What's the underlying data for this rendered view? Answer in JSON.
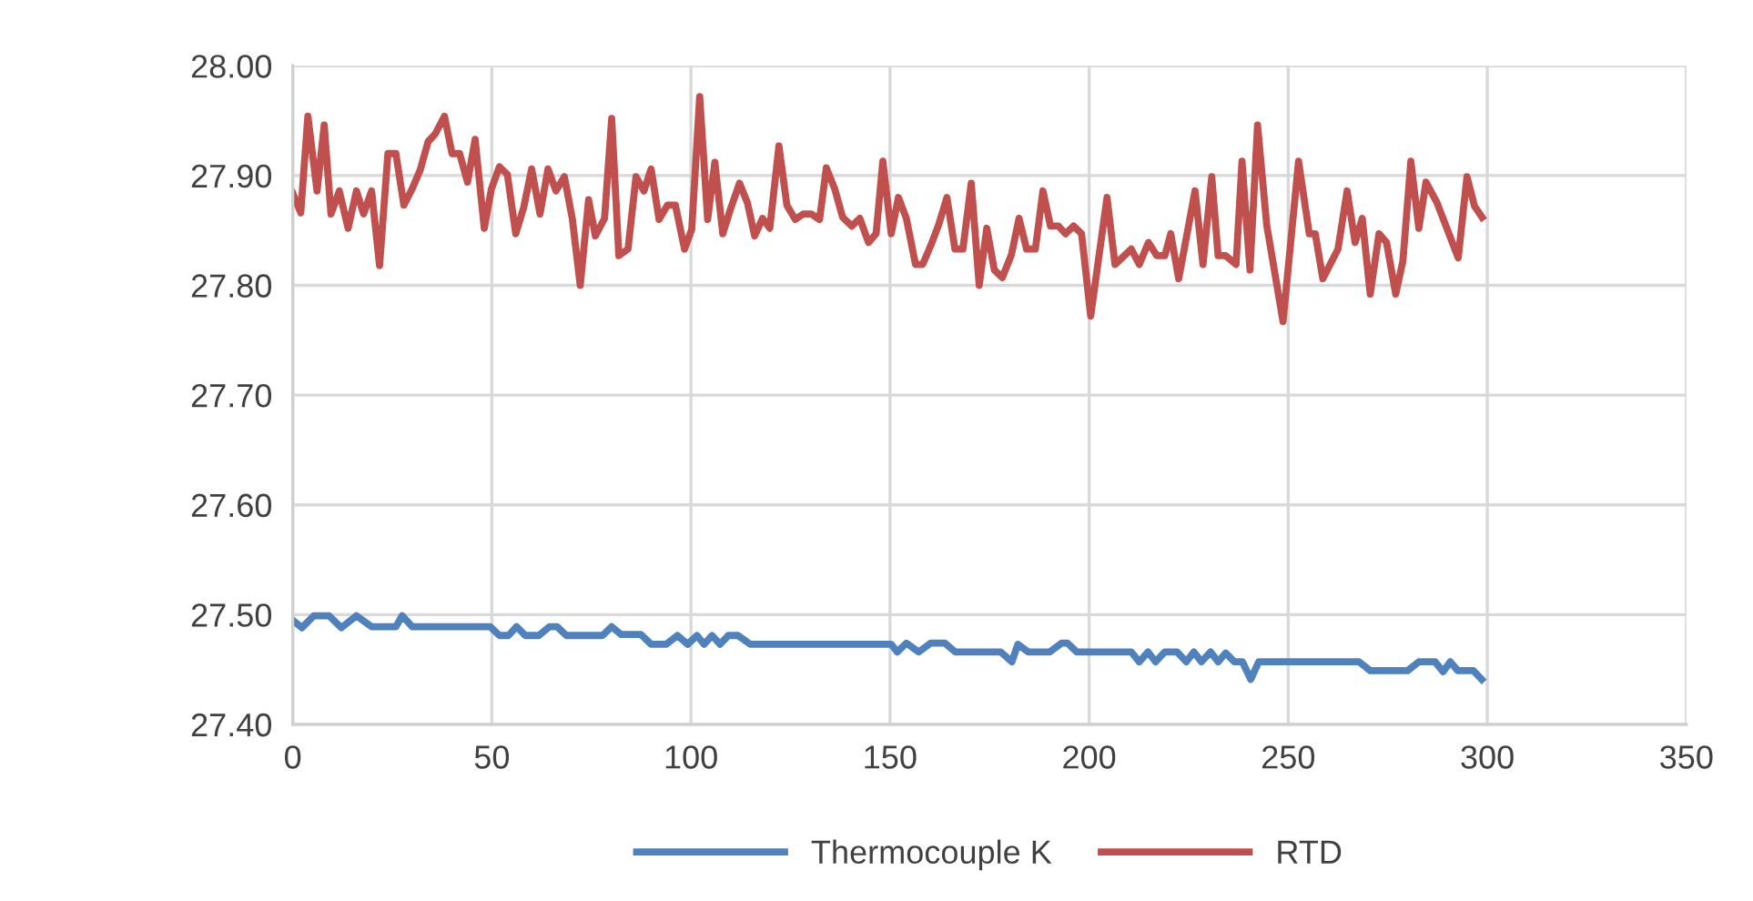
{
  "chart_data": {
    "type": "line",
    "xlim": [
      0,
      350
    ],
    "xticks": [
      0,
      50,
      100,
      150,
      200,
      250,
      300,
      350
    ],
    "ylim": [
      27.4,
      28.0
    ],
    "yticks": [
      {
        "value": 27.4,
        "label": "27.40"
      },
      {
        "value": 27.5,
        "label": "27.50"
      },
      {
        "value": 27.6,
        "label": "27.60"
      },
      {
        "value": 27.7,
        "label": "27.70"
      },
      {
        "value": 27.8,
        "label": "27.80"
      },
      {
        "value": 27.9,
        "label": "27.90"
      },
      {
        "value": 28.0,
        "label": "28.00"
      }
    ],
    "grid": true,
    "legend": "bottom",
    "marker": "none",
    "line_style": "solid",
    "series": [
      {
        "name": "Thermocouple K",
        "color": "#4f81bd",
        "x": [
          0,
          2.3,
          5.3,
          9.1,
          12.2,
          16.0,
          19.8,
          25.9,
          27.5,
          30.0,
          49.6,
          51.9,
          54.2,
          56.2,
          58.4,
          61.8,
          64.5,
          66.4,
          68.7,
          77.8,
          80.1,
          82.4,
          87.4,
          90.0,
          93.8,
          96.6,
          99.2,
          101.5,
          103.3,
          105.3,
          107.3,
          109.4,
          111.8,
          114.9,
          150.3,
          151.8,
          154.1,
          157.2,
          160.2,
          163.8,
          166.4,
          177.8,
          180.6,
          182.1,
          184.7,
          190.1,
          193.1,
          194.6,
          196.9,
          210.6,
          212.6,
          214.8,
          216.7,
          219.0,
          222.1,
          224.4,
          226.3,
          228.2,
          230.5,
          232.4,
          234.3,
          236.5,
          238.5,
          240.6,
          242.6,
          267.8,
          270.6,
          280.0,
          282.8,
          286.9,
          288.9,
          290.7,
          292.6,
          296.5,
          298.6
        ],
        "values": [
          27.495,
          27.488,
          27.499,
          27.499,
          27.488,
          27.499,
          27.489,
          27.489,
          27.499,
          27.489,
          27.489,
          27.481,
          27.481,
          27.489,
          27.481,
          27.481,
          27.489,
          27.489,
          27.481,
          27.481,
          27.489,
          27.482,
          27.482,
          27.473,
          27.473,
          27.481,
          27.473,
          27.481,
          27.473,
          27.481,
          27.473,
          27.481,
          27.481,
          27.473,
          27.473,
          27.466,
          27.474,
          27.466,
          27.474,
          27.474,
          27.466,
          27.466,
          27.457,
          27.473,
          27.466,
          27.466,
          27.474,
          27.474,
          27.466,
          27.466,
          27.457,
          27.466,
          27.457,
          27.466,
          27.466,
          27.457,
          27.466,
          27.457,
          27.466,
          27.457,
          27.465,
          27.457,
          27.457,
          27.441,
          27.457,
          27.457,
          27.449,
          27.449,
          27.457,
          27.457,
          27.448,
          27.457,
          27.449,
          27.449,
          27.441
        ]
      },
      {
        "name": "RTD",
        "color": "#c0504d",
        "x": [
          0,
          2.0,
          3.8,
          6.1,
          7.9,
          9.6,
          11.7,
          13.9,
          16.0,
          17.8,
          19.8,
          21.8,
          23.9,
          25.9,
          27.9,
          30.0,
          32.0,
          34.0,
          35.8,
          38.1,
          40.0,
          41.9,
          43.9,
          45.8,
          48.1,
          49.9,
          51.9,
          53.9,
          56.0,
          58.0,
          60.0,
          62.1,
          64.1,
          66.1,
          68.2,
          70.2,
          72.2,
          74.3,
          76.0,
          78.3,
          80.1,
          81.9,
          84.2,
          86.2,
          88.2,
          90.0,
          92.0,
          94.1,
          96.1,
          98.4,
          100.2,
          102.2,
          104.2,
          106.0,
          108.0,
          109.9,
          112.2,
          114.2,
          116.0,
          118.0,
          119.8,
          122.1,
          124.1,
          126.2,
          128.2,
          130.2,
          132.3,
          134.0,
          136.1,
          138.1,
          140.4,
          142.4,
          144.6,
          146.5,
          148.2,
          150.3,
          152.1,
          154.1,
          156.4,
          158.2,
          160.2,
          162.2,
          164.3,
          166.3,
          168.3,
          170.4,
          172.4,
          174.3,
          176.2,
          178.2,
          180.5,
          182.4,
          184.3,
          186.5,
          188.4,
          190.3,
          192.3,
          194.1,
          196.1,
          198.1,
          200.4,
          204.5,
          206.5,
          210.6,
          212.6,
          214.9,
          217.0,
          219.0,
          220.5,
          222.5,
          226.6,
          228.6,
          230.8,
          232.4,
          234.3,
          236.9,
          238.4,
          240.4,
          242.3,
          244.6,
          248.7,
          252.6,
          255.3,
          256.8,
          258.7,
          262.5,
          264.8,
          266.8,
          268.6,
          270.6,
          272.8,
          274.7,
          277.0,
          278.8,
          280.8,
          282.8,
          284.6,
          287.4,
          292.7,
          294.9,
          296.8,
          298.7
        ],
        "values": [
          27.884,
          27.866,
          27.954,
          27.886,
          27.946,
          27.865,
          27.886,
          27.852,
          27.886,
          27.865,
          27.886,
          27.818,
          27.92,
          27.92,
          27.873,
          27.888,
          27.905,
          27.931,
          27.938,
          27.954,
          27.92,
          27.92,
          27.894,
          27.933,
          27.852,
          27.888,
          27.908,
          27.901,
          27.847,
          27.871,
          27.906,
          27.865,
          27.906,
          27.886,
          27.899,
          27.861,
          27.8,
          27.878,
          27.845,
          27.861,
          27.952,
          27.827,
          27.833,
          27.899,
          27.886,
          27.906,
          27.86,
          27.873,
          27.873,
          27.833,
          27.851,
          27.972,
          27.86,
          27.912,
          27.847,
          27.869,
          27.893,
          27.875,
          27.845,
          27.861,
          27.852,
          27.927,
          27.873,
          27.86,
          27.865,
          27.865,
          27.86,
          27.907,
          27.888,
          27.862,
          27.854,
          27.861,
          27.839,
          27.847,
          27.913,
          27.847,
          27.88,
          27.861,
          27.819,
          27.819,
          27.836,
          27.855,
          27.88,
          27.833,
          27.833,
          27.893,
          27.8,
          27.852,
          27.814,
          27.807,
          27.828,
          27.861,
          27.833,
          27.833,
          27.886,
          27.854,
          27.854,
          27.847,
          27.854,
          27.847,
          27.772,
          27.88,
          27.819,
          27.833,
          27.819,
          27.839,
          27.827,
          27.827,
          27.847,
          27.806,
          27.886,
          27.819,
          27.899,
          27.827,
          27.827,
          27.819,
          27.913,
          27.814,
          27.946,
          27.855,
          27.767,
          27.913,
          27.847,
          27.847,
          27.806,
          27.833,
          27.886,
          27.839,
          27.861,
          27.792,
          27.847,
          27.839,
          27.792,
          27.822,
          27.913,
          27.852,
          27.894,
          27.875,
          27.825,
          27.899,
          27.872,
          27.862
        ]
      }
    ]
  }
}
